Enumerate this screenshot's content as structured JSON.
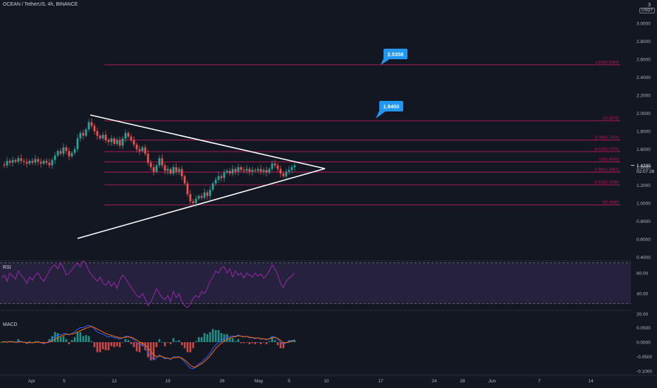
{
  "header": {
    "title": "OCEAN / TetherUS, 4h, BINANCE"
  },
  "currency": {
    "count": "3",
    "unit": "USDT"
  },
  "colors": {
    "bg": "#131722",
    "up": "#26a69a",
    "down": "#ef5350",
    "fib": "#c2185b",
    "callout": "#2196f3",
    "rsi": "#9c27b0",
    "rsi_fill": "#7e57c2",
    "macd": "#2962ff",
    "signal": "#ff6d00"
  },
  "chart_data": [
    {
      "type": "candlestick",
      "x_labels": [
        "Apr",
        "5",
        "12",
        "19",
        "26",
        "May",
        "5",
        "10",
        "17",
        "24",
        "28",
        "Jun",
        "7",
        "14"
      ],
      "ylim": [
        0.5,
        3.1
      ],
      "y_ticks": [
        "3.0000",
        "2.8000",
        "2.6000",
        "2.4000",
        "2.2000",
        "2.0000",
        "1.8000",
        "1.6000",
        "1.4000",
        "1.2000",
        "1.0000",
        "0.8000",
        "0.6000",
        "0.4000"
      ],
      "y_tick_values": [
        3.0,
        2.8,
        2.6,
        2.4,
        2.2,
        2.0,
        1.8,
        1.6,
        1.4,
        1.2,
        1.0,
        0.8,
        0.6,
        0.4
      ],
      "last_price": "1.4200",
      "countdown": "02:07:26",
      "price_path": [
        1.43,
        1.42,
        1.47,
        1.45,
        1.48,
        1.46,
        1.5,
        1.47,
        1.46,
        1.44,
        1.47,
        1.45,
        1.49,
        1.46,
        1.44,
        1.47,
        1.45,
        1.42,
        1.48,
        1.53,
        1.58,
        1.55,
        1.62,
        1.58,
        1.52,
        1.56,
        1.6,
        1.72,
        1.78,
        1.75,
        1.82,
        1.9,
        1.86,
        1.8,
        1.75,
        1.72,
        1.76,
        1.7,
        1.68,
        1.72,
        1.66,
        1.7,
        1.64,
        1.72,
        1.78,
        1.74,
        1.7,
        1.65,
        1.6,
        1.58,
        1.62,
        1.55,
        1.45,
        1.4,
        1.35,
        1.42,
        1.5,
        1.42,
        1.36,
        1.38,
        1.33,
        1.4,
        1.35,
        1.38,
        1.3,
        1.22,
        1.1,
        1.02,
        1.0,
        1.05,
        1.08,
        1.06,
        1.12,
        1.08,
        1.15,
        1.22,
        1.26,
        1.3,
        1.28,
        1.34,
        1.36,
        1.33,
        1.38,
        1.35,
        1.4,
        1.37,
        1.36,
        1.38,
        1.35,
        1.37,
        1.36,
        1.38,
        1.35,
        1.37,
        1.34,
        1.38,
        1.44,
        1.42,
        1.38,
        1.33,
        1.3,
        1.35,
        1.37,
        1.4,
        1.42
      ],
      "fib_levels": [
        {
          "label": "1.618(2.5384)",
          "value": 2.5384
        },
        {
          "label": "1(1.9172)",
          "value": 1.9172
        },
        {
          "label": "0.786(1.7024)",
          "value": 1.7024
        },
        {
          "label": "0.618(1.5731)",
          "value": 1.5731
        },
        {
          "label": "0.5(1.4592)",
          "value": 1.4592
        },
        {
          "label": "0.382(1.3451)",
          "value": 1.3451
        },
        {
          "label": "0.236(1.2038)",
          "value": 1.2038
        },
        {
          "label": "0(0.9808)",
          "value": 0.9808
        }
      ],
      "targets": [
        {
          "label": "2.5358",
          "value": 2.5358
        },
        {
          "label": "1.9400",
          "value": 1.94
        }
      ]
    },
    {
      "type": "line",
      "title": "RSI",
      "y_ticks": [
        "60.00",
        "40.00",
        "20.00"
      ],
      "y_tick_values": [
        60,
        40,
        20
      ],
      "band": [
        30,
        70
      ],
      "values": [
        55,
        58,
        52,
        60,
        57,
        54,
        62,
        58,
        55,
        50,
        56,
        53,
        58,
        60,
        55,
        52,
        57,
        62,
        66,
        68,
        64,
        70,
        65,
        58,
        60,
        63,
        67,
        70,
        66,
        72,
        69,
        62,
        58,
        55,
        52,
        56,
        50,
        48,
        52,
        47,
        51,
        45,
        53,
        58,
        55,
        50,
        46,
        42,
        38,
        36,
        40,
        35,
        28,
        32,
        38,
        45,
        40,
        36,
        34,
        38,
        32,
        42,
        36,
        40,
        32,
        28,
        26,
        30,
        35,
        38,
        36,
        42,
        40,
        45,
        52,
        56,
        62,
        60,
        65,
        66,
        60,
        64,
        56,
        62,
        58,
        60,
        55,
        60,
        58,
        56,
        60,
        57,
        59,
        55,
        58,
        62,
        68,
        64,
        58,
        50,
        46,
        52,
        55,
        57,
        60
      ]
    },
    {
      "type": "macd",
      "title": "MACD",
      "y_ticks": [
        "0.0500",
        "0.0000",
        "-0.0500",
        "-0.1000"
      ],
      "y_tick_values": [
        0.05,
        0.0,
        -0.05,
        -0.1
      ],
      "macd": [
        0.0,
        0.002,
        0.0,
        0.003,
        0.001,
        0.0,
        0.003,
        0.002,
        0.0,
        -0.003,
        -0.001,
        -0.003,
        0.0,
        0.001,
        -0.002,
        -0.004,
        -0.002,
        0.003,
        0.01,
        0.02,
        0.025,
        0.025,
        0.03,
        0.03,
        0.025,
        0.03,
        0.035,
        0.045,
        0.05,
        0.05,
        0.055,
        0.058,
        0.055,
        0.045,
        0.035,
        0.03,
        0.028,
        0.022,
        0.018,
        0.02,
        0.015,
        0.014,
        0.01,
        0.015,
        0.02,
        0.02,
        0.015,
        0.008,
        -0.002,
        -0.01,
        -0.008,
        -0.018,
        -0.035,
        -0.05,
        -0.062,
        -0.055,
        -0.045,
        -0.05,
        -0.058,
        -0.055,
        -0.06,
        -0.05,
        -0.052,
        -0.05,
        -0.058,
        -0.068,
        -0.08,
        -0.09,
        -0.092,
        -0.085,
        -0.075,
        -0.07,
        -0.058,
        -0.05,
        -0.038,
        -0.022,
        -0.01,
        0.0,
        0.005,
        0.012,
        0.018,
        0.018,
        0.022,
        0.02,
        0.025,
        0.02,
        0.018,
        0.02,
        0.015,
        0.015,
        0.012,
        0.015,
        0.01,
        0.012,
        0.008,
        0.012,
        0.02,
        0.018,
        0.01,
        0.0,
        -0.008,
        -0.002,
        0.002,
        0.005,
        0.008
      ],
      "signal": [
        0.0,
        0.001,
        0.0,
        0.002,
        0.0,
        0.0,
        0.0,
        0.001,
        0.0,
        -0.001,
        -0.002,
        -0.002,
        -0.001,
        0.0,
        -0.001,
        -0.002,
        -0.002,
        0.0,
        0.004,
        0.01,
        0.016,
        0.02,
        0.024,
        0.027,
        0.027,
        0.028,
        0.03,
        0.035,
        0.04,
        0.044,
        0.048,
        0.052,
        0.054,
        0.05,
        0.045,
        0.04,
        0.035,
        0.03,
        0.026,
        0.024,
        0.02,
        0.018,
        0.015,
        0.015,
        0.017,
        0.018,
        0.017,
        0.013,
        0.007,
        0.0,
        -0.004,
        -0.01,
        -0.02,
        -0.032,
        -0.045,
        -0.05,
        -0.048,
        -0.05,
        -0.054,
        -0.055,
        -0.058,
        -0.054,
        -0.053,
        -0.052,
        -0.055,
        -0.062,
        -0.07,
        -0.08,
        -0.086,
        -0.086,
        -0.08,
        -0.075,
        -0.067,
        -0.058,
        -0.048,
        -0.035,
        -0.022,
        -0.012,
        -0.004,
        0.004,
        0.01,
        0.014,
        0.018,
        0.019,
        0.022,
        0.021,
        0.019,
        0.02,
        0.017,
        0.016,
        0.014,
        0.015,
        0.012,
        0.012,
        0.01,
        0.011,
        0.015,
        0.016,
        0.013,
        0.006,
        -0.002,
        -0.002,
        0.0,
        0.003,
        0.006
      ]
    }
  ]
}
